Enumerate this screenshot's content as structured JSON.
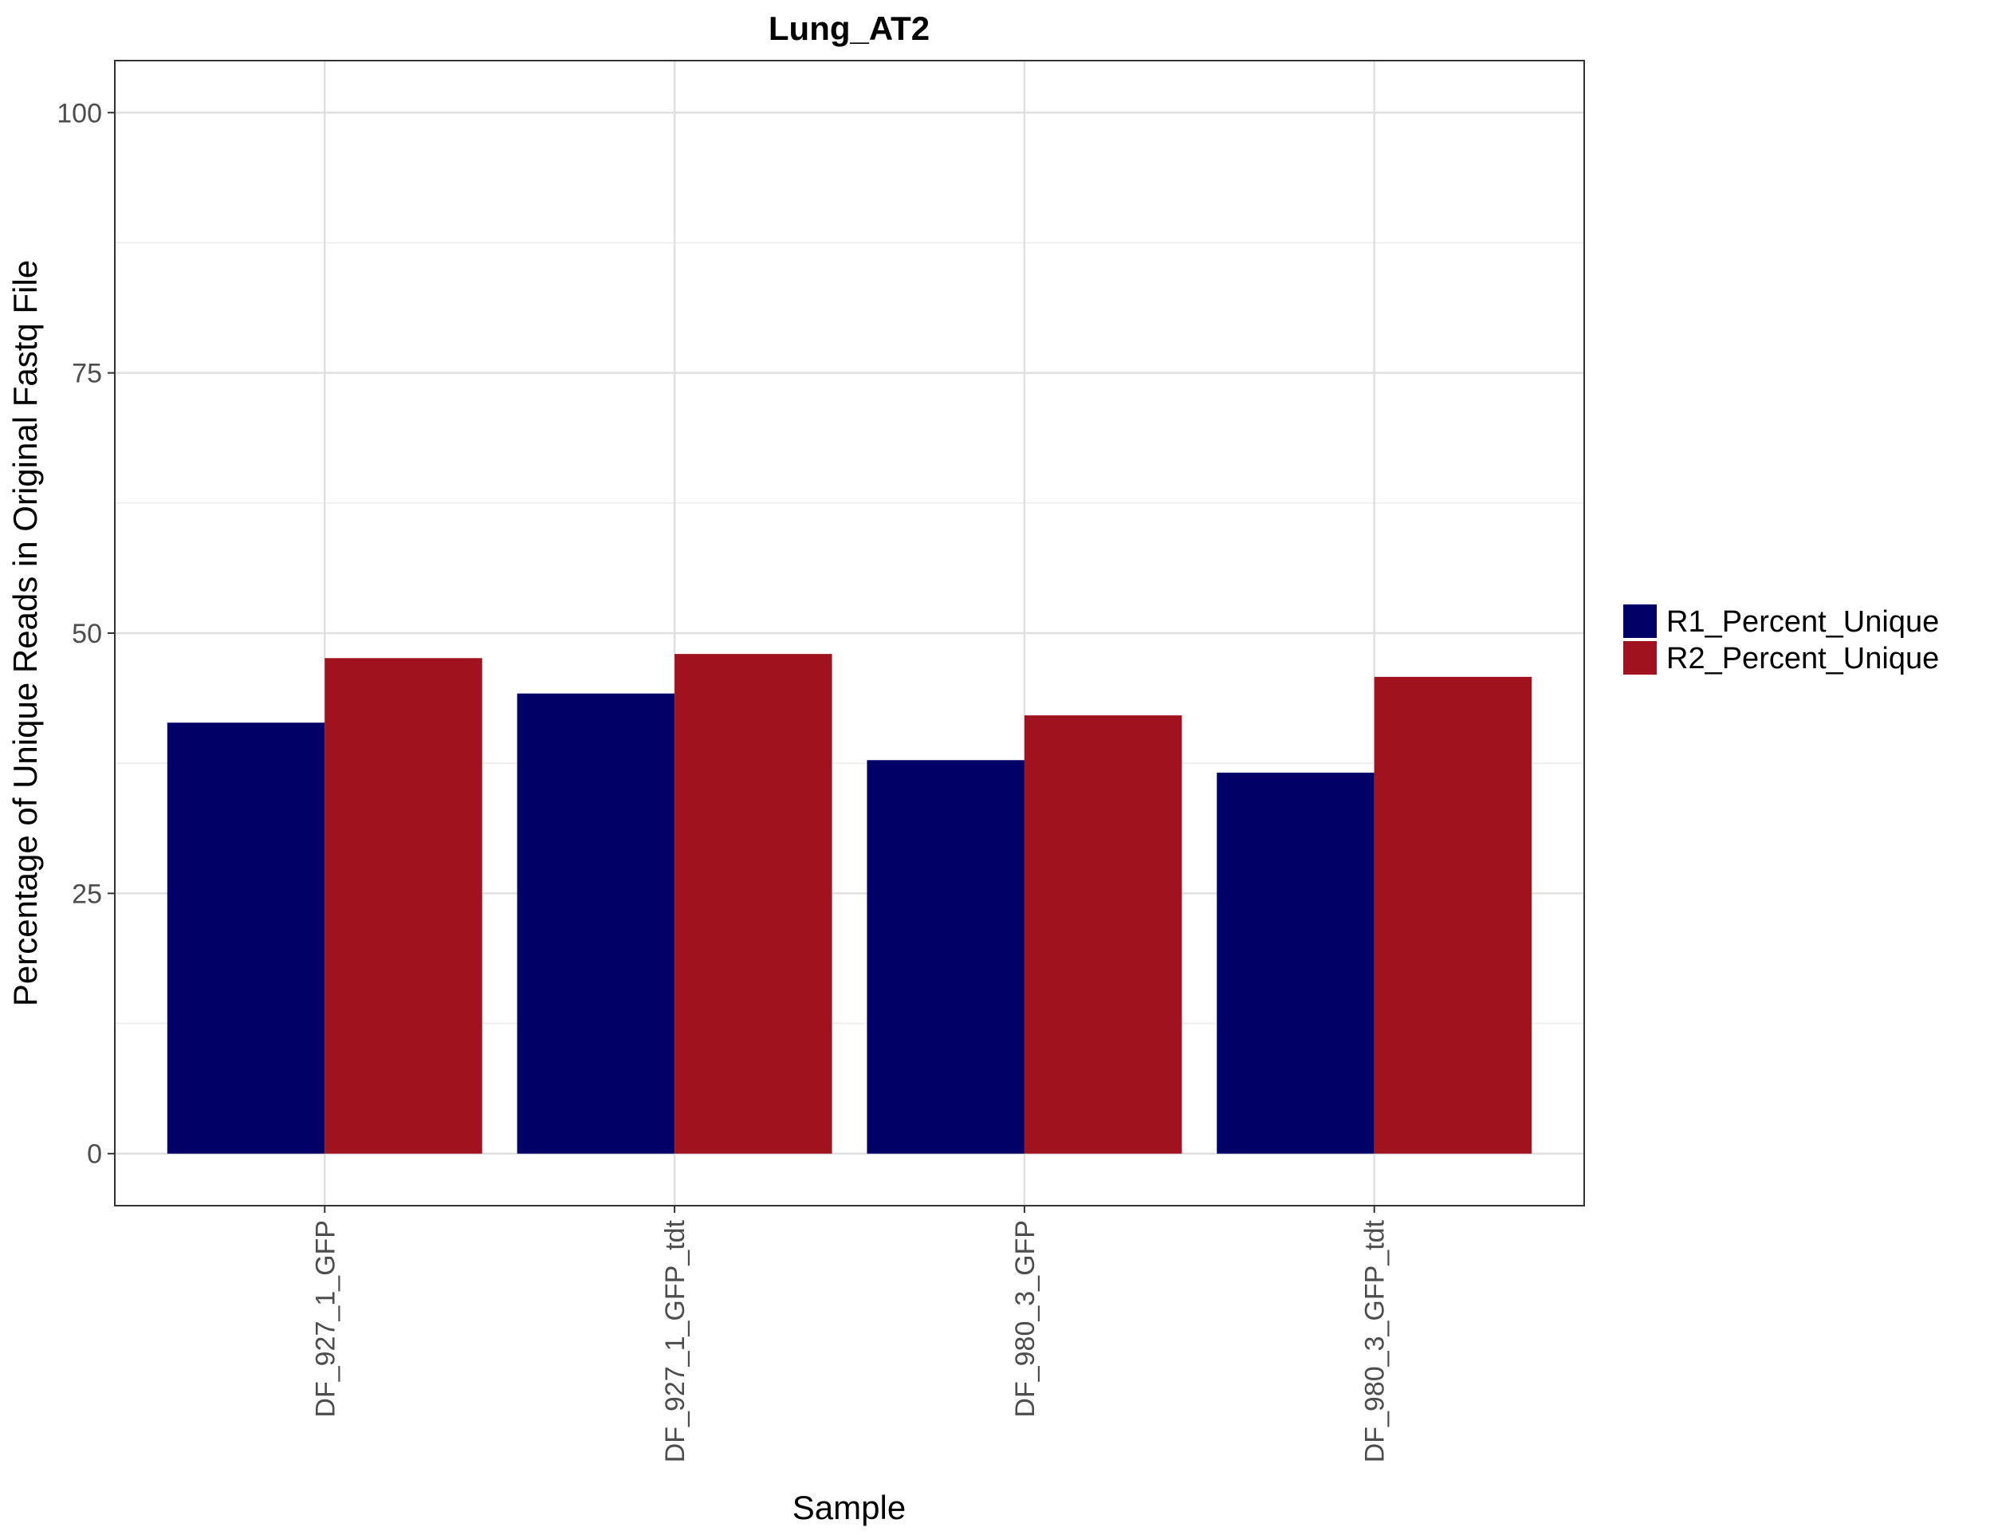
{
  "chart_data": {
    "type": "bar",
    "title": "Lung_AT2",
    "xlabel": "Sample",
    "ylabel": "Percentage of Unique Reads in Original Fastq File",
    "categories": [
      "DF_927_1_GFP",
      "DF_927_1_GFP_tdt",
      "DF_980_3_GFP",
      "DF_980_3_GFP_tdt"
    ],
    "series": [
      {
        "name": "R1_Percent_Unique",
        "color": "#000066",
        "values": [
          41.4,
          44.2,
          37.8,
          36.6
        ]
      },
      {
        "name": "R2_Percent_Unique",
        "color": "#A0121D",
        "values": [
          47.6,
          48.0,
          42.1,
          45.8
        ]
      }
    ],
    "ylim": [
      -5,
      105
    ],
    "y_ticks": [
      0,
      25,
      50,
      75,
      100
    ],
    "y_minor_ticks": [
      12.5,
      37.5,
      62.5,
      87.5
    ],
    "grid": true,
    "legend_position": "right",
    "x_tick_rotation": "vertical"
  }
}
